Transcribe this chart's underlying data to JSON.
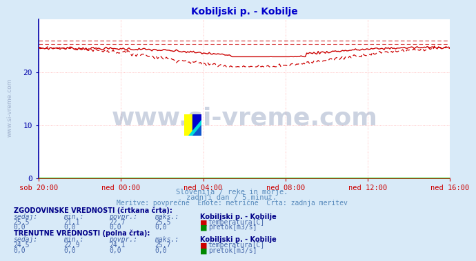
{
  "title": "Kobiljski p. - Kobilje",
  "title_color": "#0000cc",
  "bg_color": "#d8eaf8",
  "plot_bg_color": "#ffffff",
  "grid_color": "#ffb0b0",
  "axis_color": "#cc0000",
  "tick_color": "#0000aa",
  "watermark": "www.si-vreme.com",
  "watermark_color": "#1a3a7a",
  "subtitle1": "Slovenija / reke in morje.",
  "subtitle2": "zadnji dan / 5 minut.",
  "subtitle3": "Meritve: povprečne  Enote: metrične  Črta: zadnja meritev",
  "subtitle_color": "#5588bb",
  "x_tick_labels": [
    "sob 20:00",
    "ned 00:00",
    "ned 04:00",
    "ned 08:00",
    "ned 12:00",
    "ned 16:00"
  ],
  "x_tick_positions": [
    0,
    48,
    96,
    144,
    192,
    240
  ],
  "ylim": [
    0,
    30
  ],
  "y_ticks": [
    0,
    10,
    20
  ],
  "n_points": 288,
  "temp_solid_color": "#cc0000",
  "temp_dashed_color": "#cc0000",
  "flow_color": "#008800",
  "zero_line_color": "#00cc00",
  "hist_max_line": 25.9,
  "hist_max_line2": 25.3,
  "table_header_color": "#000088",
  "table_label_color": "#4466aa",
  "table_value_color": "#4466aa",
  "hist_sedaj": 25.5,
  "hist_min": 21.1,
  "hist_povpr": 22.7,
  "hist_maks": 25.5,
  "curr_sedaj": 24.5,
  "curr_min": 22.9,
  "curr_povpr": 24.1,
  "curr_maks": 25.7,
  "station_name": "Kobiljski p. - Kobilje"
}
